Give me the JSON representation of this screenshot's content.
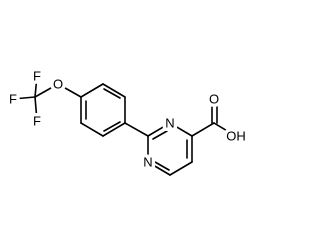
{
  "atoms": [
    "F",
    "F",
    "F",
    "O",
    "N",
    "N",
    "O",
    "OH"
  ]
}
